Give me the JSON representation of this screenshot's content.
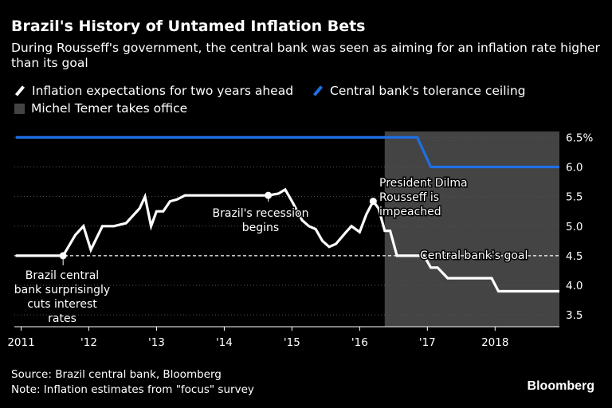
{
  "header": {
    "title": "Brazil's History of Untamed Inflation Bets",
    "subtitle": "During Rousseff's government, the central bank was seen as aiming for an inflation rate higher than its goal"
  },
  "legend": {
    "expectations": "Inflation expectations for two years ahead",
    "ceiling": "Central bank's tolerance ceiling",
    "temer": "Michel Temer takes office"
  },
  "colors": {
    "background": "#000000",
    "expectations": "#ffffff",
    "ceiling": "#1f6fe5",
    "shade": "#444444",
    "grid": "#555555"
  },
  "footer": {
    "source": "Source: Brazil central bank, Bloomberg",
    "note": "Note: Inflation estimates from \"focus\" survey",
    "brand": "Bloomberg"
  },
  "chart_data": {
    "type": "line",
    "title": "Brazil's History of Untamed Inflation Bets",
    "xlim": [
      2010.9,
      2018.95
    ],
    "ylim": [
      3.3,
      6.6
    ],
    "x_ticks": [
      {
        "value": 2011,
        "label": "2011"
      },
      {
        "value": 2012,
        "label": "'12"
      },
      {
        "value": 2013,
        "label": "'13"
      },
      {
        "value": 2014,
        "label": "'14"
      },
      {
        "value": 2015,
        "label": "'15"
      },
      {
        "value": 2016,
        "label": "'16"
      },
      {
        "value": 2017,
        "label": "'17"
      },
      {
        "value": 2018,
        "label": "2018"
      }
    ],
    "y_ticks": [
      {
        "value": 3.5,
        "label": "3.5"
      },
      {
        "value": 4.0,
        "label": "4.0"
      },
      {
        "value": 4.5,
        "label": "4.5"
      },
      {
        "value": 5.0,
        "label": "5.0"
      },
      {
        "value": 5.5,
        "label": "5.5"
      },
      {
        "value": 6.0,
        "label": "6.0"
      },
      {
        "value": 6.5,
        "label": "6.5%"
      }
    ],
    "shaded_region": {
      "label": "Michel Temer takes office",
      "x_start": 2016.37,
      "x_end": 2018.95
    },
    "reference_line": {
      "label": "Central bank's goal",
      "y": 4.5
    },
    "series": [
      {
        "name": "Inflation expectations for two years ahead",
        "x": [
          2010.92,
          2011.62,
          2011.8,
          2011.92,
          2012.03,
          2012.2,
          2012.37,
          2012.55,
          2012.75,
          2012.83,
          2012.92,
          2013.0,
          2013.1,
          2013.2,
          2013.3,
          2013.42,
          2013.55,
          2013.7,
          2014.0,
          2014.3,
          2014.65,
          2014.8,
          2014.9,
          2015.0,
          2015.08,
          2015.15,
          2015.25,
          2015.35,
          2015.45,
          2015.55,
          2015.65,
          2015.8,
          2015.88,
          2016.0,
          2016.1,
          2016.2,
          2016.28,
          2016.37,
          2016.45,
          2016.55,
          2016.95,
          2017.05,
          2017.15,
          2017.3,
          2017.95,
          2018.05,
          2018.95
        ],
        "y": [
          4.5,
          4.5,
          4.85,
          5.0,
          4.6,
          5.0,
          5.0,
          5.05,
          5.3,
          5.5,
          5.0,
          5.25,
          5.25,
          5.42,
          5.45,
          5.52,
          5.52,
          5.52,
          5.52,
          5.52,
          5.52,
          5.55,
          5.62,
          5.42,
          5.25,
          5.1,
          5.0,
          4.95,
          4.75,
          4.65,
          4.7,
          4.9,
          5.0,
          4.9,
          5.2,
          5.42,
          5.3,
          4.92,
          4.92,
          4.5,
          4.5,
          4.3,
          4.3,
          4.12,
          4.12,
          3.9,
          3.9
        ],
        "color": "#ffffff"
      },
      {
        "name": "Central bank's tolerance ceiling",
        "x": [
          2010.92,
          2016.85,
          2017.05,
          2018.95
        ],
        "y": [
          6.5,
          6.5,
          6.0,
          6.0
        ],
        "color": "#1f6fe5"
      }
    ],
    "markers": [
      {
        "x": 2011.62,
        "y": 4.5
      },
      {
        "x": 2014.65,
        "y": 5.52
      },
      {
        "x": 2016.2,
        "y": 5.42
      }
    ],
    "annotations": [
      {
        "name": "annotation-rate-cut",
        "lines": [
          "Brazil central",
          "bank surprisingly",
          "cuts interest",
          "rates"
        ]
      },
      {
        "name": "annotation-recession",
        "lines": [
          "Brazil's recession",
          "begins"
        ]
      },
      {
        "name": "annotation-impeachment",
        "lines": [
          "President Dilma",
          "Rousseff is",
          "impeached"
        ]
      },
      {
        "name": "annotation-goal",
        "lines": [
          "Central bank's goal"
        ]
      }
    ]
  }
}
